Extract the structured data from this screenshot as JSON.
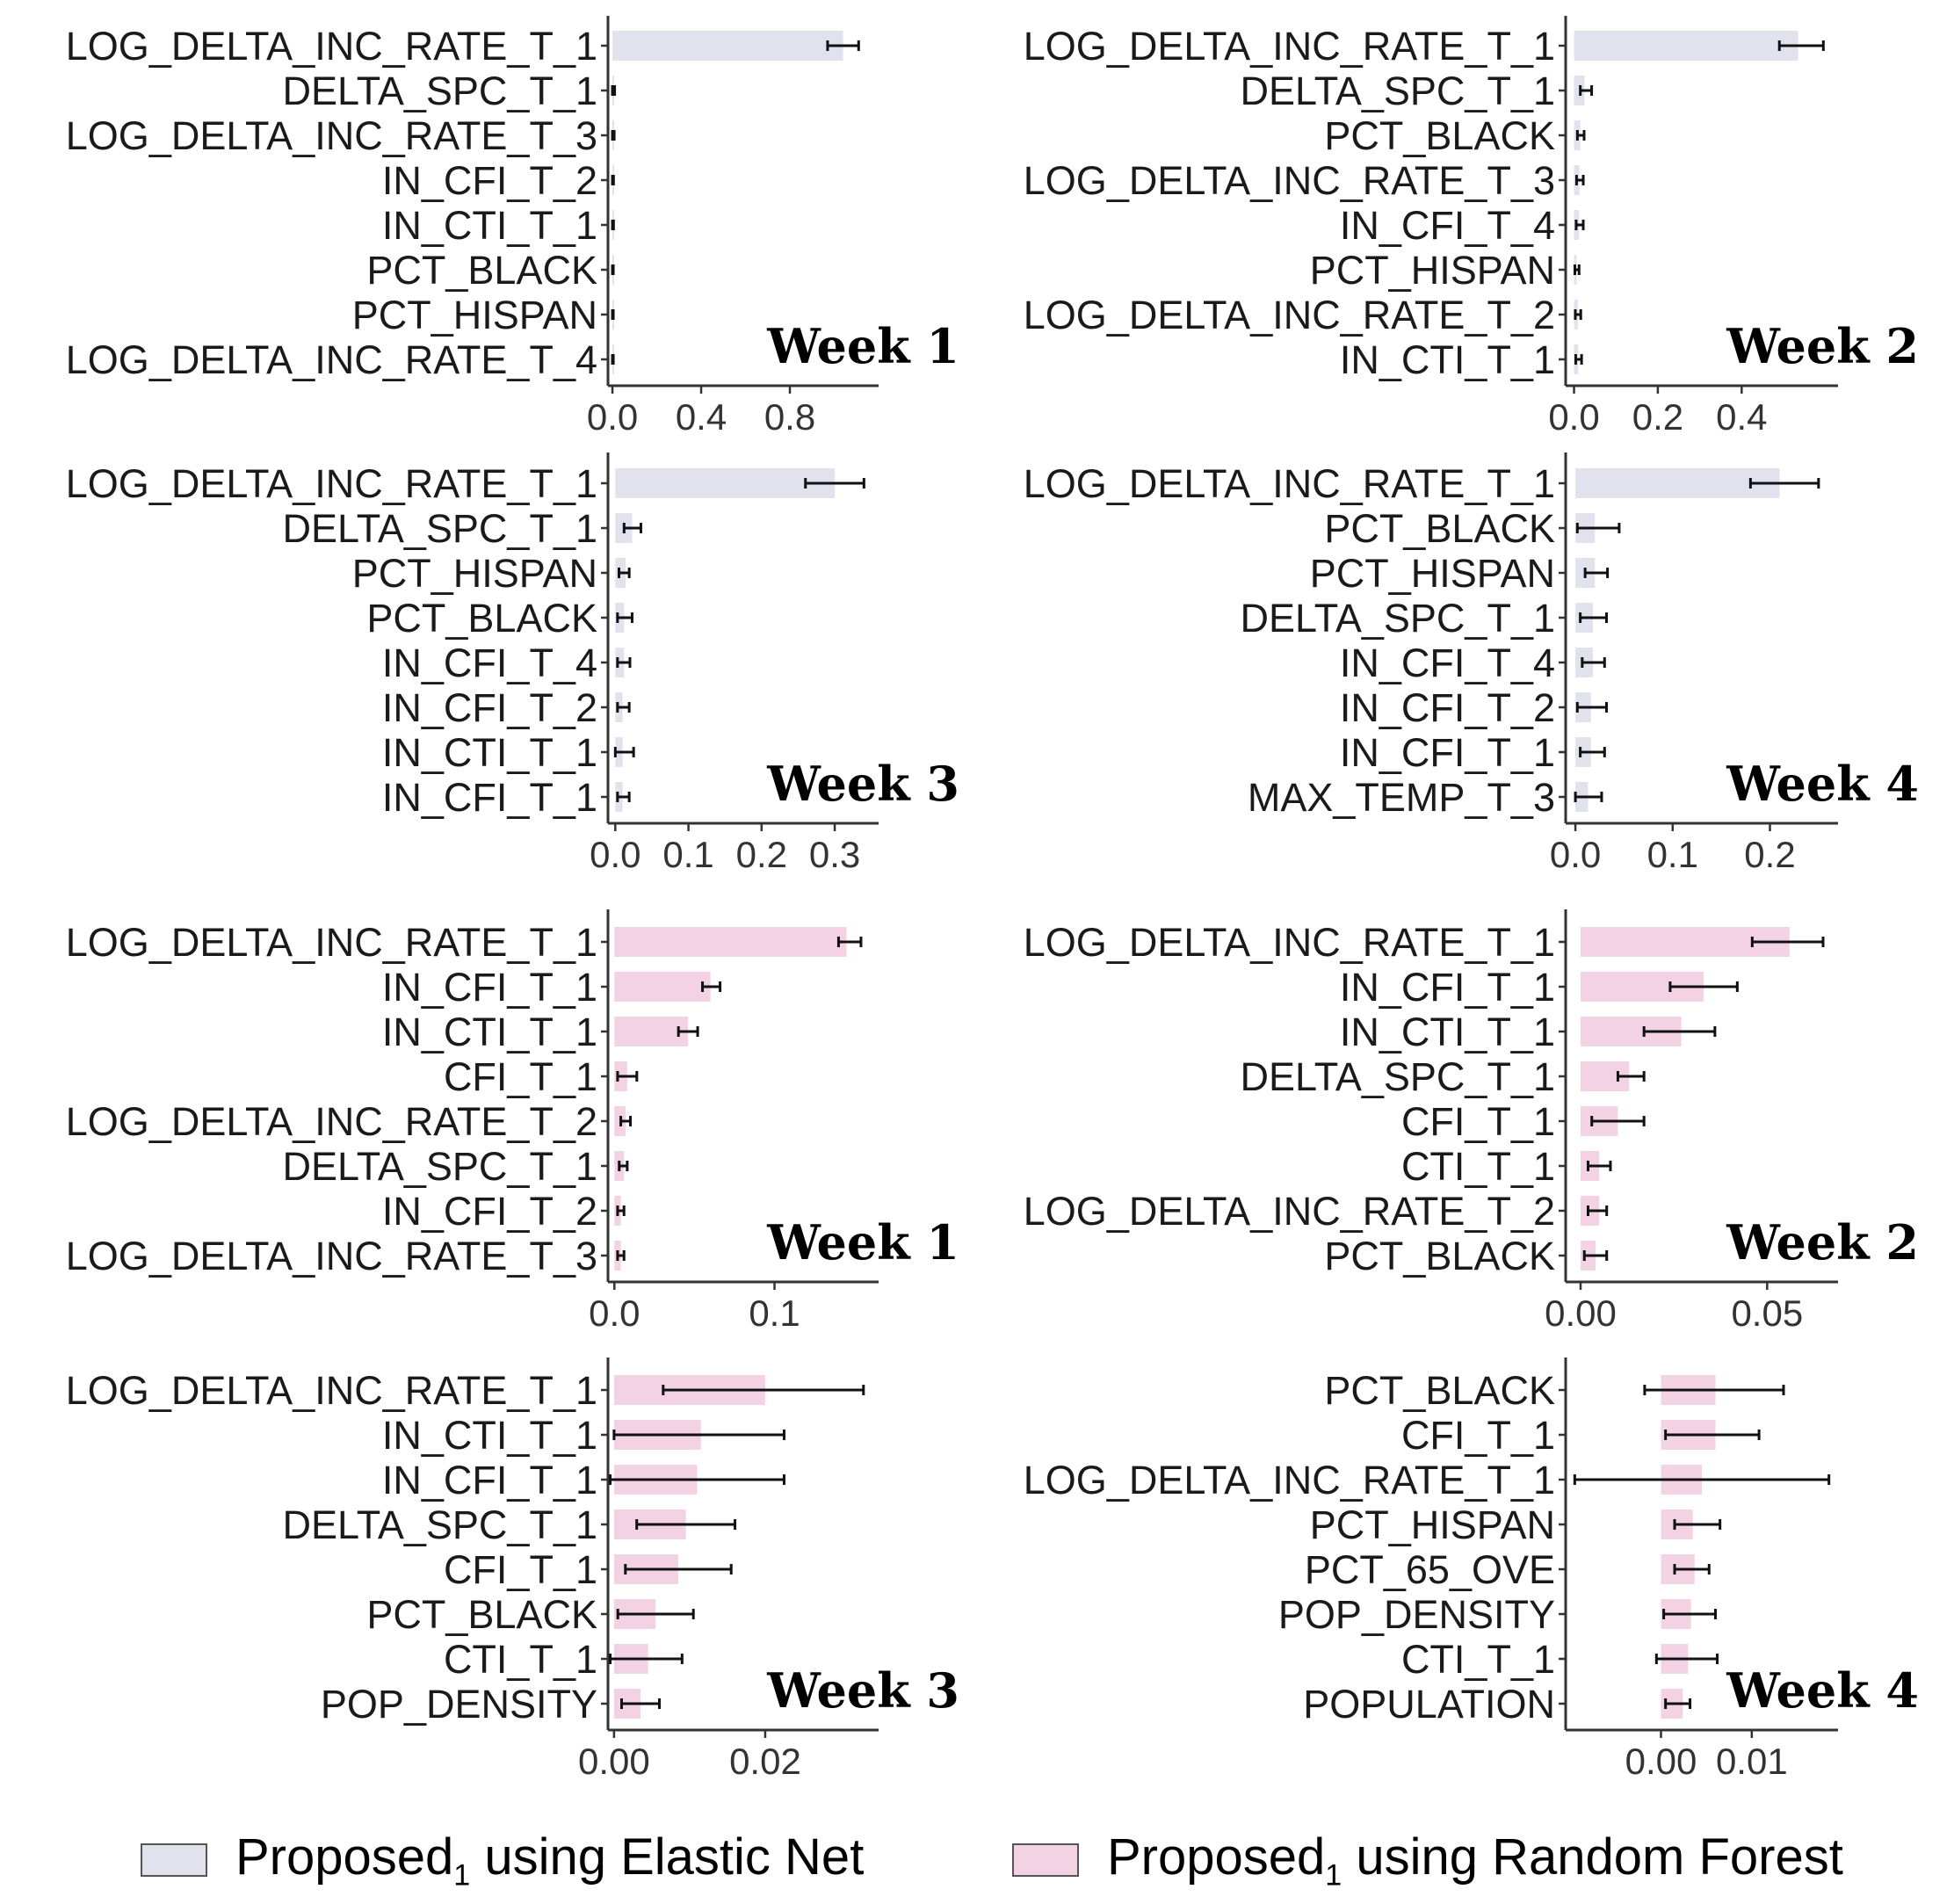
{
  "chart_data": [
    {
      "type": "bar",
      "orientation": "horizontal",
      "model": "Elastic Net",
      "label": "Week 1",
      "color": "#e2e2ef",
      "categories": [
        "LOG_DELTA_INC_RATE_T_1",
        "DELTA_SPC_T_1",
        "LOG_DELTA_INC_RATE_T_3",
        "IN_CFI_T_2",
        "IN_CTI_T_1",
        "PCT_BLACK",
        "PCT_HISPAN",
        "LOG_DELTA_INC_RATE_T_4"
      ],
      "values": [
        1.04,
        0.004,
        0.003,
        0.002,
        0.002,
        0.0015,
        0.0015,
        0.001
      ],
      "err_low": [
        0.97,
        0.0,
        0.0,
        0.0,
        0.0,
        0.0,
        0.0,
        0.0
      ],
      "err_high": [
        1.11,
        0.01,
        0.008,
        0.005,
        0.005,
        0.004,
        0.004,
        0.004
      ],
      "xlim": [
        -0.02,
        1.2
      ],
      "xticks": [
        0.0,
        0.4,
        0.8
      ],
      "xtick_labels": [
        "0.0",
        "0.4",
        "0.8"
      ]
    },
    {
      "type": "bar",
      "orientation": "horizontal",
      "model": "Elastic Net",
      "label": "Week 2",
      "color": "#e2e2ef",
      "categories": [
        "LOG_DELTA_INC_RATE_T_1",
        "DELTA_SPC_T_1",
        "PCT_BLACK",
        "LOG_DELTA_INC_RATE_T_3",
        "IN_CFI_T_4",
        "PCT_HISPAN",
        "LOG_DELTA_INC_RATE_T_2",
        "IN_CTI_T_1"
      ],
      "values": [
        0.535,
        0.025,
        0.015,
        0.013,
        0.012,
        0.006,
        0.009,
        0.01
      ],
      "err_low": [
        0.49,
        0.015,
        0.008,
        0.006,
        0.005,
        0.002,
        0.003,
        0.004
      ],
      "err_high": [
        0.595,
        0.042,
        0.024,
        0.022,
        0.022,
        0.012,
        0.016,
        0.018
      ],
      "xlim": [
        -0.02,
        0.63
      ],
      "xticks": [
        0.0,
        0.2,
        0.4
      ],
      "xtick_labels": [
        "0.0",
        "0.2",
        "0.4"
      ]
    },
    {
      "type": "bar",
      "orientation": "horizontal",
      "model": "Elastic Net",
      "label": "Week 3",
      "color": "#e2e2ef",
      "categories": [
        "LOG_DELTA_INC_RATE_T_1",
        "DELTA_SPC_T_1",
        "PCT_HISPAN",
        "PCT_BLACK",
        "IN_CFI_T_4",
        "IN_CFI_T_2",
        "IN_CTI_T_1",
        "IN_CFI_T_1"
      ],
      "values": [
        0.3,
        0.023,
        0.014,
        0.012,
        0.012,
        0.01,
        0.01,
        0.01
      ],
      "err_low": [
        0.26,
        0.012,
        0.005,
        0.003,
        0.003,
        0.003,
        0.0,
        0.003
      ],
      "err_high": [
        0.34,
        0.035,
        0.019,
        0.023,
        0.02,
        0.019,
        0.025,
        0.019
      ],
      "xlim": [
        -0.01,
        0.36
      ],
      "xticks": [
        0.0,
        0.1,
        0.2,
        0.3
      ],
      "xtick_labels": [
        "0.0",
        "0.1",
        "0.2",
        "0.3"
      ]
    },
    {
      "type": "bar",
      "orientation": "horizontal",
      "model": "Elastic Net",
      "label": "Week 4",
      "color": "#e2e2ef",
      "categories": [
        "LOG_DELTA_INC_RATE_T_1",
        "PCT_BLACK",
        "PCT_HISPAN",
        "DELTA_SPC_T_1",
        "IN_CFI_T_4",
        "IN_CFI_T_2",
        "IN_CFI_T_1",
        "MAX_TEMP_T_3"
      ],
      "values": [
        0.21,
        0.02,
        0.02,
        0.018,
        0.018,
        0.016,
        0.016,
        0.013
      ],
      "err_low": [
        0.18,
        0.002,
        0.01,
        0.005,
        0.007,
        0.002,
        0.005,
        0.0
      ],
      "err_high": [
        0.25,
        0.045,
        0.033,
        0.032,
        0.03,
        0.032,
        0.03,
        0.027
      ],
      "xlim": [
        -0.01,
        0.27
      ],
      "xticks": [
        0.0,
        0.1,
        0.2
      ],
      "xtick_labels": [
        "0.0",
        "0.1",
        "0.2"
      ]
    },
    {
      "type": "bar",
      "orientation": "horizontal",
      "model": "Random Forest",
      "label": "Week 1",
      "color": "#f3d2e4",
      "categories": [
        "LOG_DELTA_INC_RATE_T_1",
        "IN_CFI_T_1",
        "IN_CTI_T_1",
        "CFI_T_1",
        "LOG_DELTA_INC_RATE_T_2",
        "DELTA_SPC_T_1",
        "IN_CFI_T_2",
        "LOG_DELTA_INC_RATE_T_3"
      ],
      "values": [
        0.145,
        0.06,
        0.046,
        0.008,
        0.007,
        0.006,
        0.004,
        0.004
      ],
      "err_low": [
        0.14,
        0.055,
        0.04,
        0.002,
        0.004,
        0.003,
        0.002,
        0.002
      ],
      "err_high": [
        0.154,
        0.066,
        0.052,
        0.014,
        0.01,
        0.008,
        0.006,
        0.006
      ],
      "xlim": [
        -0.004,
        0.165
      ],
      "xticks": [
        0.0,
        0.1
      ],
      "xtick_labels": [
        "0.0",
        "0.1"
      ]
    },
    {
      "type": "bar",
      "orientation": "horizontal",
      "model": "Random Forest",
      "label": "Week 2",
      "color": "#f3d2e4",
      "categories": [
        "LOG_DELTA_INC_RATE_T_1",
        "IN_CFI_T_1",
        "IN_CTI_T_1",
        "DELTA_SPC_T_1",
        "CFI_T_1",
        "CTI_T_1",
        "LOG_DELTA_INC_RATE_T_2",
        "PCT_BLACK"
      ],
      "values": [
        0.056,
        0.033,
        0.027,
        0.013,
        0.01,
        0.005,
        0.005,
        0.004
      ],
      "err_low": [
        0.046,
        0.024,
        0.017,
        0.01,
        0.003,
        0.002,
        0.002,
        0.001
      ],
      "err_high": [
        0.065,
        0.042,
        0.036,
        0.017,
        0.017,
        0.008,
        0.007,
        0.007
      ],
      "xlim": [
        -0.004,
        0.069
      ],
      "xticks": [
        0.0,
        0.05
      ],
      "xtick_labels": [
        "0.00",
        "0.05"
      ]
    },
    {
      "type": "bar",
      "orientation": "horizontal",
      "model": "Random Forest",
      "label": "Week 3",
      "color": "#f3d2e4",
      "categories": [
        "LOG_DELTA_INC_RATE_T_1",
        "IN_CTI_T_1",
        "IN_CFI_T_1",
        "DELTA_SPC_T_1",
        "CFI_T_1",
        "PCT_BLACK",
        "CTI_T_1",
        "POP_DENSITY"
      ],
      "values": [
        0.02,
        0.0115,
        0.011,
        0.0095,
        0.0085,
        0.0055,
        0.0045,
        0.0035
      ],
      "err_low": [
        0.0065,
        0.0,
        -0.0005,
        0.003,
        0.0015,
        0.0005,
        -0.0005,
        0.001
      ],
      "err_high": [
        0.033,
        0.0225,
        0.0225,
        0.016,
        0.0155,
        0.0105,
        0.009,
        0.006
      ],
      "xlim": [
        -0.0008,
        0.035
      ],
      "xticks": [
        0.0,
        0.02
      ],
      "xtick_labels": [
        "0.00",
        "0.02"
      ]
    },
    {
      "type": "bar",
      "orientation": "horizontal",
      "model": "Random Forest",
      "label": "Week 4",
      "color": "#f3d2e4",
      "categories": [
        "PCT_BLACK",
        "CFI_T_1",
        "LOG_DELTA_INC_RATE_T_1",
        "PCT_HISPAN",
        "PCT_65_OVE",
        "POP_DENSITY",
        "CTI_T_1",
        "POPULATION"
      ],
      "values": [
        0.006,
        0.006,
        0.0045,
        0.0035,
        0.0037,
        0.0033,
        0.003,
        0.0024
      ],
      "err_low": [
        -0.0018,
        0.0005,
        -0.0095,
        0.0015,
        0.0015,
        0.0003,
        -0.0005,
        0.0005
      ],
      "err_high": [
        0.0135,
        0.0108,
        0.0185,
        0.0065,
        0.0053,
        0.006,
        0.0062,
        0.0032
      ],
      "xlim": [
        -0.0105,
        0.0195
      ],
      "xticks": [
        0.0,
        0.01
      ],
      "xtick_labels": [
        "0.00",
        "0.01"
      ]
    }
  ],
  "legend": [
    {
      "label": "Proposed",
      "subscript": "1",
      "suffix": " using Elastic Net",
      "color": "#e2e2ef"
    },
    {
      "label": "Proposed",
      "subscript": "1",
      "suffix": " using Random Forest",
      "color": "#f3d2e4"
    }
  ]
}
